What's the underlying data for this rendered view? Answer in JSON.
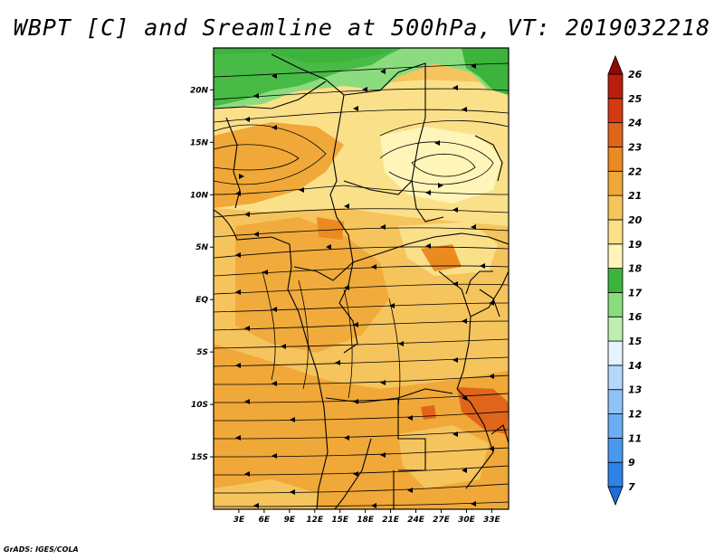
{
  "title": "WBPT [C] and Sreamline at 500hPa, VT: 2019032218",
  "credit": "GrADS: IGES/COLA",
  "map": {
    "lat_labels": [
      "20N",
      "15N",
      "10N",
      "5N",
      "EQ",
      "5S",
      "10S",
      "15S"
    ],
    "lat_values": [
      20,
      15,
      10,
      5,
      0,
      -5,
      -10,
      -15
    ],
    "lon_labels": [
      "3E",
      "6E",
      "9E",
      "12E",
      "15E",
      "18E",
      "21E",
      "24E",
      "27E",
      "30E",
      "33E"
    ],
    "lon_values": [
      3,
      6,
      9,
      12,
      15,
      18,
      21,
      24,
      27,
      30,
      33
    ],
    "lon_range": [
      0,
      35
    ],
    "lat_range": [
      -20,
      24
    ]
  },
  "colorbar": {
    "labels": [
      "7",
      "9",
      "11",
      "12",
      "13",
      "14",
      "15",
      "16",
      "17",
      "18",
      "19",
      "20",
      "21",
      "22",
      "23",
      "24",
      "25",
      "26"
    ],
    "colors": [
      "#1f6ed8",
      "#2f82e6",
      "#4a98ee",
      "#6aadf3",
      "#8ec3f7",
      "#b4d8fa",
      "#e4f3fd",
      "#bfeeb0",
      "#8bdc7e",
      "#3cb43c",
      "#fff5b8",
      "#fbe08a",
      "#f5c45c",
      "#f0a838",
      "#ec8a22",
      "#e0651a",
      "#d33a12",
      "#b81e0c",
      "#8f0a06"
    ]
  }
}
